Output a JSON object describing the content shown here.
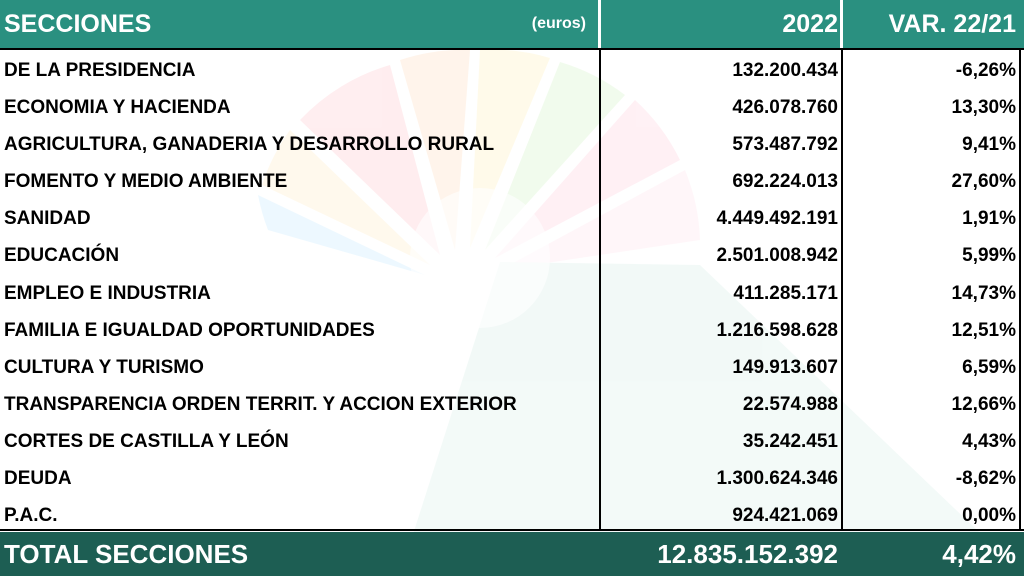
{
  "header": {
    "sections_label": "SECCIONES",
    "unit_label": "(euros)",
    "year_label": "2022",
    "variation_label": "VAR. 22/21"
  },
  "rows": [
    {
      "name": "DE LA PRESIDENCIA",
      "amount": "132.200.434",
      "var": "-6,26%"
    },
    {
      "name": "ECONOMIA Y HACIENDA",
      "amount": "426.078.760",
      "var": "13,30%"
    },
    {
      "name": "AGRICULTURA, GANADERIA Y DESARROLLO RURAL",
      "amount": "573.487.792",
      "var": "9,41%"
    },
    {
      "name": "FOMENTO Y MEDIO AMBIENTE",
      "amount": "692.224.013",
      "var": "27,60%"
    },
    {
      "name": "SANIDAD",
      "amount": "4.449.492.191",
      "var": "1,91%"
    },
    {
      "name": "EDUCACIÓN",
      "amount": "2.501.008.942",
      "var": "5,99%"
    },
    {
      "name": "EMPLEO E INDUSTRIA",
      "amount": "411.285.171",
      "var": "14,73%"
    },
    {
      "name": "FAMILIA E IGUALDAD OPORTUNIDADES",
      "amount": "1.216.598.628",
      "var": "12,51%"
    },
    {
      "name": "CULTURA Y TURISMO",
      "amount": "149.913.607",
      "var": "6,59%"
    },
    {
      "name": "TRANSPARENCIA ORDEN TERRIT. Y ACCION EXTERIOR",
      "amount": "22.574.988",
      "var": "12,66%"
    },
    {
      "name": "CORTES DE CASTILLA Y LEÓN",
      "amount": "35.242.451",
      "var": "4,43%"
    },
    {
      "name": "DEUDA",
      "amount": "1.300.624.346",
      "var": "-8,62%"
    },
    {
      "name": "P.A.C.",
      "amount": "924.421.069",
      "var": "0,00%"
    }
  ],
  "total": {
    "label": "TOTAL SECCIONES",
    "amount": "12.835.152.392",
    "var": "4,42%"
  },
  "colors": {
    "header_bg": "#2a9080",
    "total_bg": "#1d5e53",
    "text": "#000000"
  }
}
